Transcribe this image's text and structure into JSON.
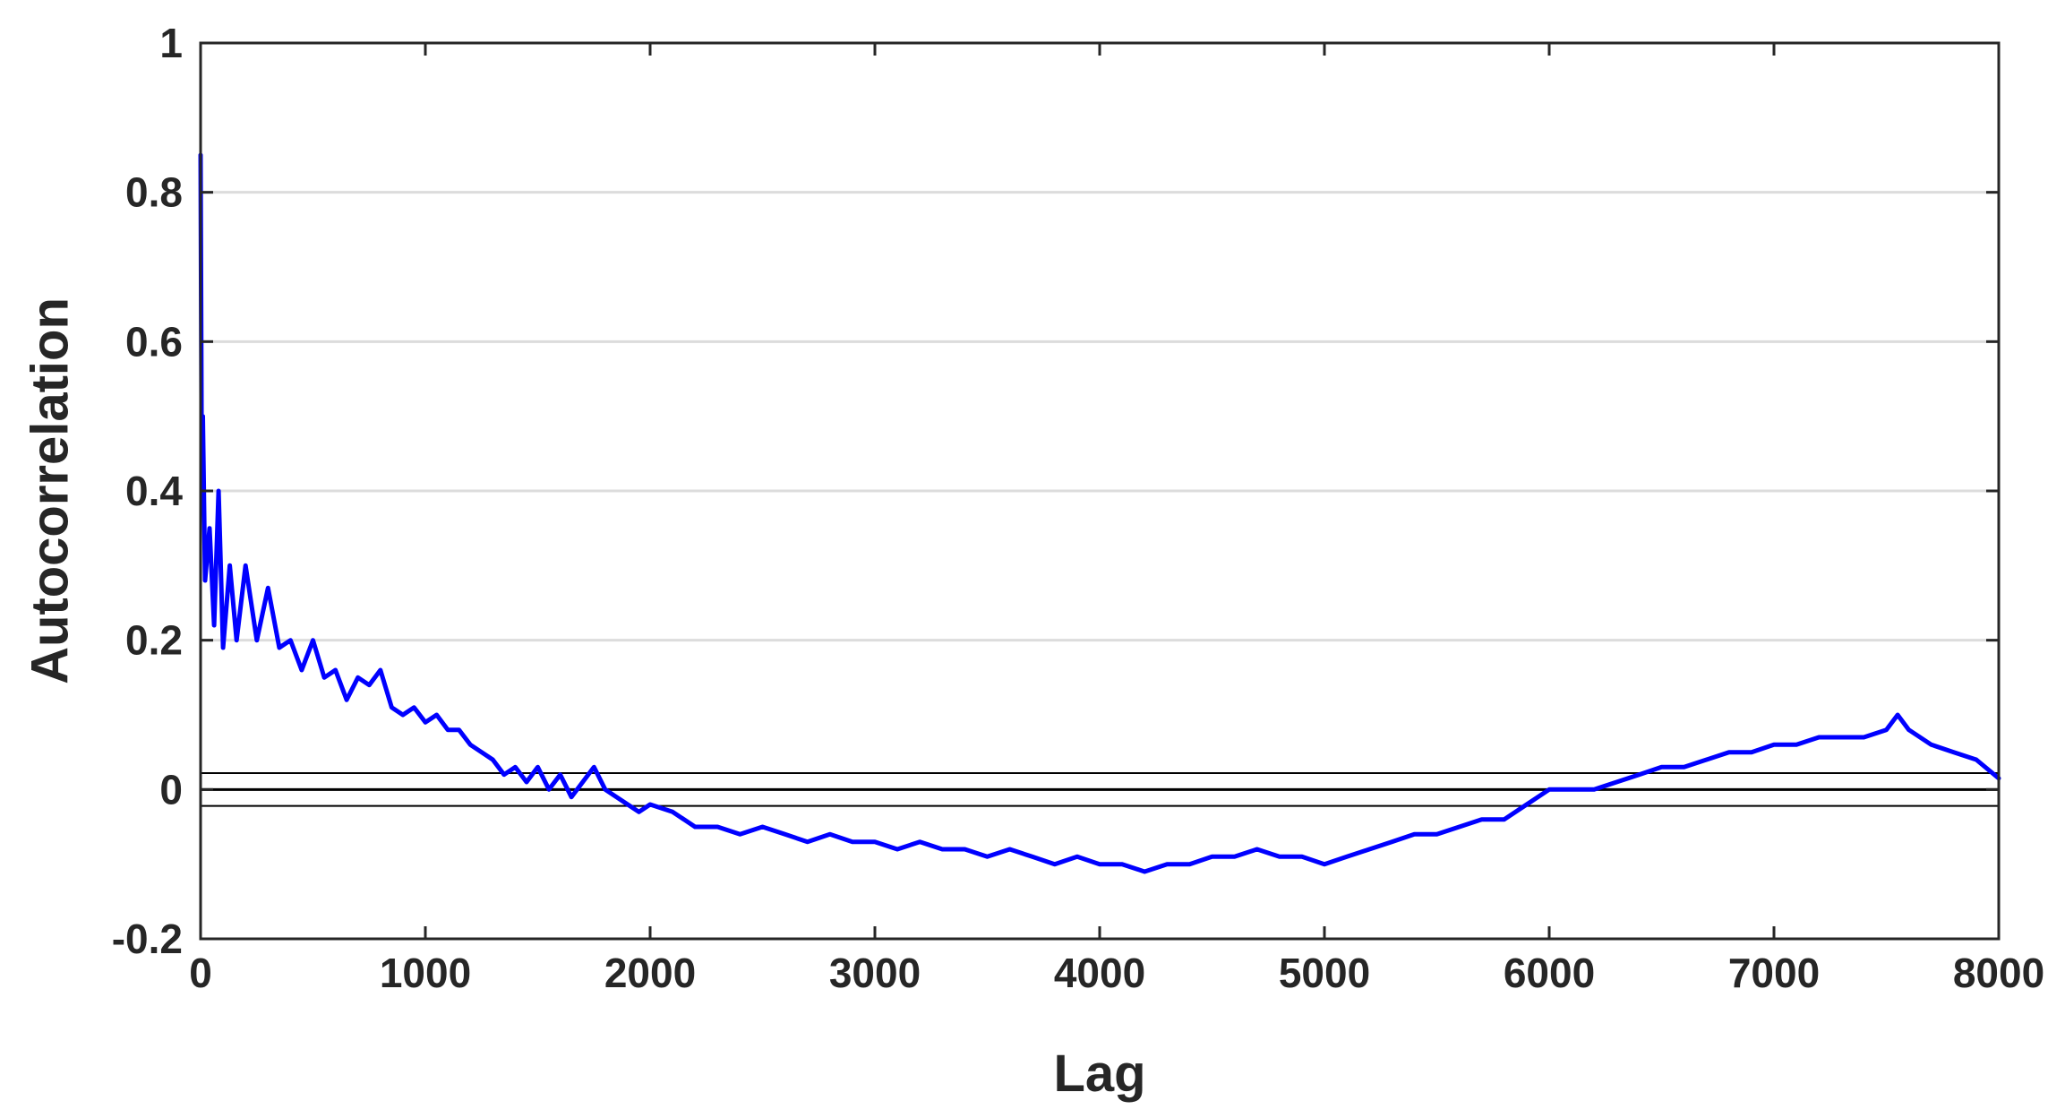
{
  "chart_data": {
    "type": "line",
    "title": "",
    "xlabel": "Lag",
    "ylabel": "Autocorrelation",
    "xlim": [
      0,
      8000
    ],
    "ylim": [
      -0.2,
      1
    ],
    "xticks": [
      0,
      1000,
      2000,
      3000,
      4000,
      5000,
      6000,
      7000,
      8000
    ],
    "xtick_labels": [
      "0",
      "1000",
      "2000",
      "3000",
      "4000",
      "5000",
      "6000",
      "7000",
      "8000"
    ],
    "yticks": [
      -0.2,
      0,
      0.2,
      0.4,
      0.6,
      0.8,
      1
    ],
    "ytick_labels": [
      "-0.2",
      "0",
      "0.2",
      "0.4",
      "0.6",
      "0.8",
      "1"
    ],
    "grid": "horizontal",
    "line_color": "#0000ff",
    "reference_line_color": "#000000",
    "reference_lines": [
      0.022,
      0,
      -0.022
    ],
    "series": [
      {
        "x": [
          0,
          5,
          10,
          20,
          40,
          60,
          80,
          100,
          130,
          160,
          200,
          250,
          300,
          350,
          400,
          450,
          500,
          550,
          600,
          650,
          700,
          750,
          800,
          850,
          900,
          950,
          1000,
          1050,
          1100,
          1150,
          1200,
          1250,
          1300,
          1350,
          1400,
          1450,
          1500,
          1550,
          1600,
          1650,
          1700,
          1750,
          1800,
          1850,
          1900,
          1950,
          2000,
          2100,
          2200,
          2300,
          2400,
          2500,
          2600,
          2700,
          2800,
          2900,
          3000,
          3100,
          3200,
          3300,
          3400,
          3500,
          3600,
          3700,
          3800,
          3900,
          4000,
          4100,
          4200,
          4300,
          4400,
          4500,
          4600,
          4700,
          4800,
          4900,
          5000,
          5100,
          5200,
          5300,
          5400,
          5500,
          5600,
          5700,
          5800,
          5900,
          6000,
          6100,
          6200,
          6300,
          6400,
          6500,
          6600,
          6700,
          6800,
          6900,
          7000,
          7100,
          7200,
          7300,
          7400,
          7500,
          7550,
          7600,
          7700,
          7800,
          7900,
          8000
        ],
        "y": [
          0.85,
          0.42,
          0.5,
          0.28,
          0.35,
          0.22,
          0.4,
          0.19,
          0.3,
          0.2,
          0.3,
          0.2,
          0.27,
          0.19,
          0.2,
          0.16,
          0.2,
          0.15,
          0.16,
          0.12,
          0.15,
          0.14,
          0.16,
          0.11,
          0.1,
          0.11,
          0.09,
          0.1,
          0.08,
          0.08,
          0.06,
          0.05,
          0.04,
          0.02,
          0.03,
          0.01,
          0.03,
          0.0,
          0.02,
          -0.01,
          0.01,
          0.03,
          0.0,
          -0.01,
          -0.02,
          -0.03,
          -0.02,
          -0.03,
          -0.05,
          -0.05,
          -0.06,
          -0.05,
          -0.06,
          -0.07,
          -0.06,
          -0.07,
          -0.07,
          -0.08,
          -0.07,
          -0.08,
          -0.08,
          -0.09,
          -0.08,
          -0.09,
          -0.1,
          -0.09,
          -0.1,
          -0.1,
          -0.11,
          -0.1,
          -0.1,
          -0.09,
          -0.09,
          -0.08,
          -0.09,
          -0.09,
          -0.1,
          -0.09,
          -0.08,
          -0.07,
          -0.06,
          -0.06,
          -0.05,
          -0.04,
          -0.04,
          -0.02,
          0.0,
          0.0,
          0.0,
          0.01,
          0.02,
          0.03,
          0.03,
          0.04,
          0.05,
          0.05,
          0.06,
          0.06,
          0.07,
          0.07,
          0.07,
          0.08,
          0.1,
          0.08,
          0.06,
          0.05,
          0.04,
          0.015
        ]
      }
    ]
  }
}
